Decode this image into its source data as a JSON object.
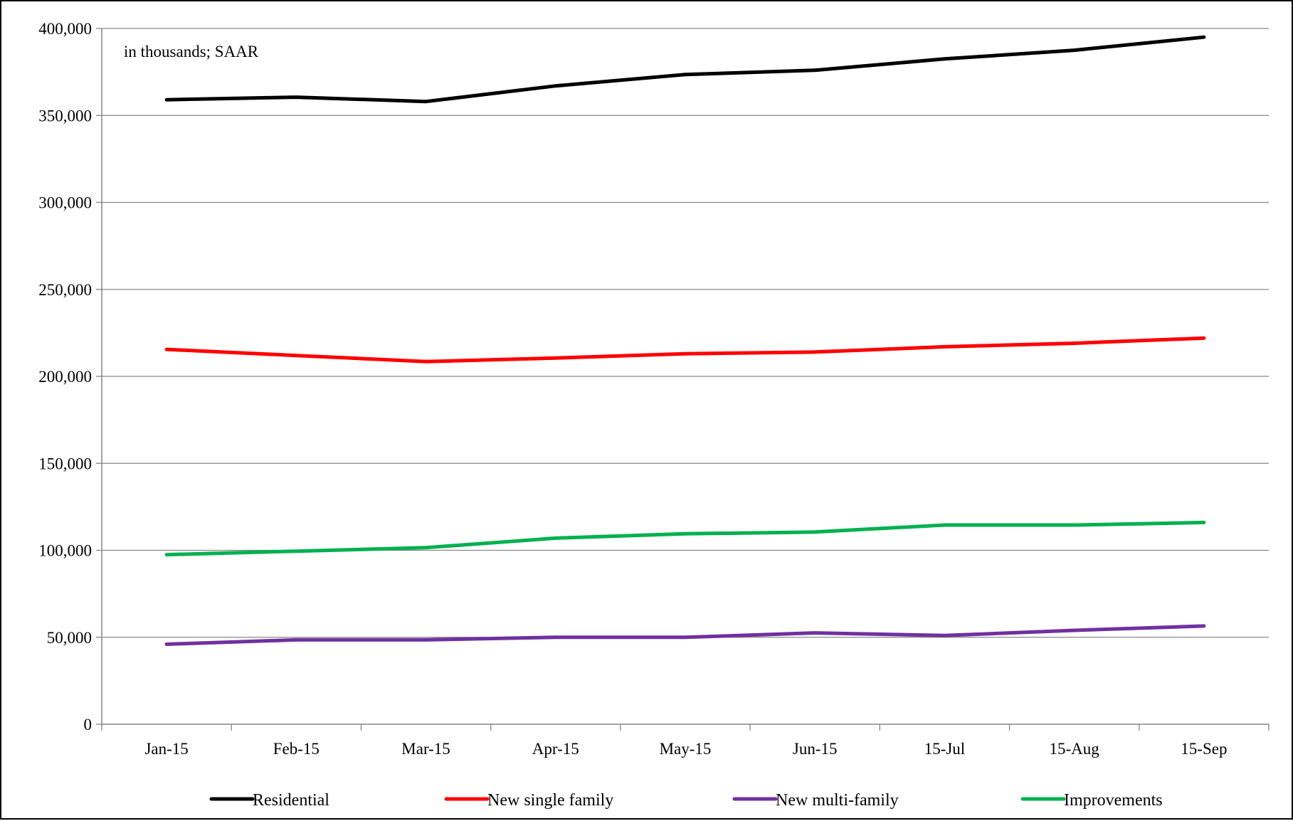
{
  "chart_data": {
    "type": "line",
    "title": "",
    "annotation": "in thousands; SAAR",
    "xlabel": "",
    "ylabel": "",
    "categories": [
      "Jan-15",
      "Feb-15",
      "Mar-15",
      "Apr-15",
      "May-15",
      "Jun-15",
      "15-Jul",
      "15-Aug",
      "15-Sep"
    ],
    "ylim": [
      0,
      400000
    ],
    "yticks": [
      0,
      50000,
      100000,
      150000,
      200000,
      250000,
      300000,
      350000,
      400000
    ],
    "ytick_labels": [
      "0",
      "50,000",
      "100,000",
      "150,000",
      "200,000",
      "250,000",
      "300,000",
      "350,000",
      "400,000"
    ],
    "grid": true,
    "legend_position": "bottom",
    "series": [
      {
        "name": "Residential",
        "color": "#000000",
        "values": [
          359000,
          360500,
          358000,
          367000,
          373500,
          376000,
          382500,
          387500,
          395000
        ]
      },
      {
        "name": "New single family",
        "color": "#ff0000",
        "values": [
          215500,
          212000,
          208500,
          210500,
          213000,
          214000,
          217000,
          219000,
          222000
        ]
      },
      {
        "name": "New multi-family",
        "color": "#7030a0",
        "values": [
          46000,
          48500,
          48500,
          50000,
          50000,
          52500,
          51000,
          54000,
          56500
        ]
      },
      {
        "name": "Improvements",
        "color": "#00b050",
        "values": [
          97500,
          99500,
          101500,
          107000,
          109500,
          110500,
          114500,
          114500,
          116000
        ]
      }
    ]
  }
}
